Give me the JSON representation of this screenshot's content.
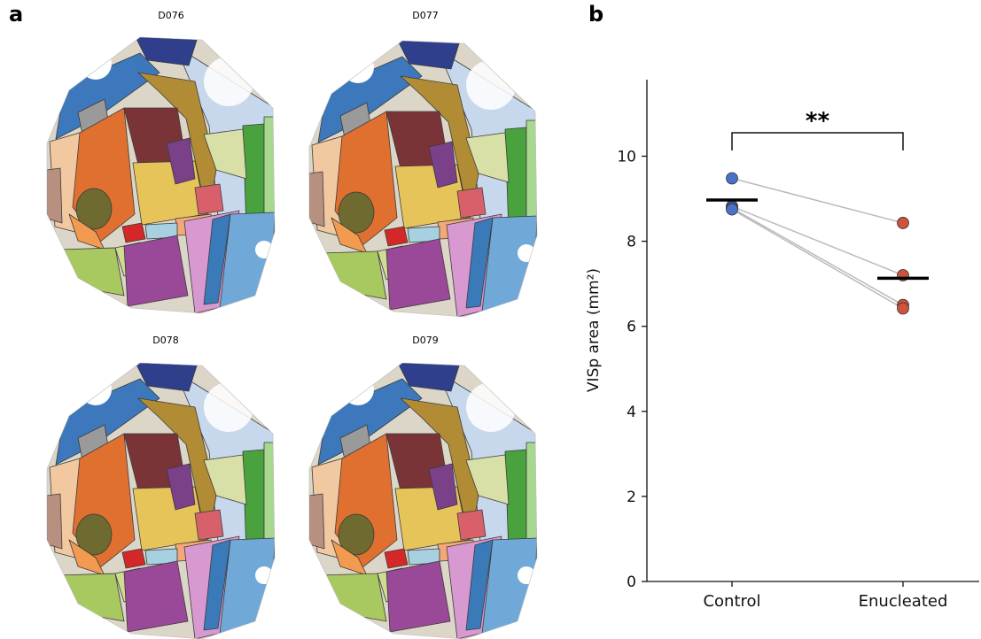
{
  "panel_labels": [
    "a",
    "b"
  ],
  "map_titles": [
    "D076",
    "D077",
    "D078",
    "D079"
  ],
  "chart_data": {
    "type": "strip",
    "ylabel": "VISp area (mm²)",
    "categories": [
      "Control",
      "Enucleated"
    ],
    "values": [
      [
        9.48,
        8.82,
        8.78,
        8.75
      ],
      [
        8.43,
        7.2,
        6.5,
        6.42
      ]
    ],
    "colors": [
      "#4a72c8",
      "#d0523a"
    ],
    "means": [
      8.97,
      7.13
    ],
    "paired": true,
    "annotation": "**",
    "ylim": [
      0,
      11.8
    ],
    "yticks": [
      0,
      2,
      4,
      6,
      8,
      10
    ]
  }
}
